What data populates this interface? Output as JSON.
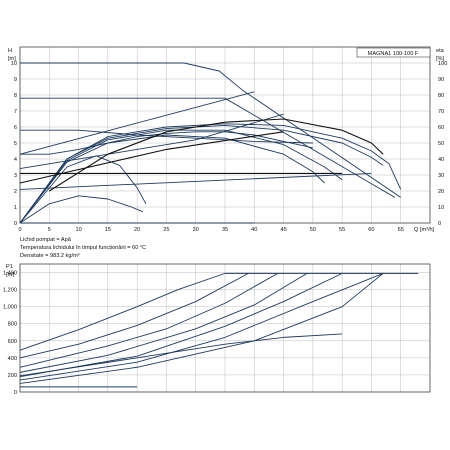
{
  "chart_data": [
    {
      "type": "line",
      "title": "MAGNA1 100-100 F",
      "left_axis": {
        "unit_symbol": "H",
        "unit": "[m]",
        "range": [
          0,
          11
        ],
        "ticks": [
          0,
          1,
          2,
          3,
          4,
          5,
          6,
          7,
          8,
          9,
          10
        ]
      },
      "right_axis": {
        "unit_symbol": "eta",
        "unit": "[%]",
        "range": [
          0,
          110
        ],
        "ticks": [
          0,
          10,
          20,
          30,
          40,
          50,
          60,
          70,
          80,
          90,
          100
        ]
      },
      "x_axis": {
        "label": "Q [m³/h]",
        "range": [
          0,
          70
        ],
        "ticks": [
          0,
          5,
          10,
          15,
          20,
          25,
          30,
          35,
          40,
          45,
          50,
          55,
          60,
          65
        ]
      },
      "grid": true,
      "head_series": [
        {
          "x": [
            0,
            28,
            34,
            38,
            65
          ],
          "y": [
            10,
            10,
            9.5,
            8.3,
            1.6
          ]
        },
        {
          "x": [
            0,
            35,
            64
          ],
          "y": [
            7.8,
            7.8,
            1.6
          ]
        },
        {
          "x": [
            0,
            8,
            15,
            25,
            35,
            45,
            55,
            60,
            63,
            65
          ],
          "y": [
            0,
            4,
            5.4,
            6,
            6.2,
            6.1,
            5.3,
            4.5,
            3.7,
            2.1
          ]
        },
        {
          "x": [
            0,
            8,
            15,
            25,
            35,
            45,
            55,
            60,
            62
          ],
          "y": [
            0,
            4,
            5.3,
            5.9,
            6.1,
            5.8,
            5,
            4.1,
            3.6
          ]
        },
        {
          "x": [
            0,
            8,
            15,
            25,
            35,
            45,
            52,
            55
          ],
          "y": [
            0,
            3.9,
            5.2,
            5.8,
            5.8,
            4.9,
            3.5,
            2.7
          ]
        },
        {
          "x": [
            0,
            8,
            15,
            25,
            35,
            45,
            50,
            52
          ],
          "y": [
            0,
            3.8,
            5,
            5.5,
            5.3,
            4.3,
            3.2,
            2.5
          ]
        },
        {
          "x": [
            0,
            8,
            13,
            17,
            20,
            21.5
          ],
          "y": [
            0,
            3.5,
            4.2,
            3.6,
            2.2,
            1.2
          ]
        },
        {
          "x": [
            0,
            5,
            10,
            15,
            19,
            21
          ],
          "y": [
            0,
            1.2,
            1.7,
            1.5,
            1,
            0.7
          ]
        },
        {
          "x": [
            0,
            10,
            20,
            30,
            40
          ],
          "y": [
            0,
            0,
            0,
            0,
            0
          ]
        },
        {
          "x": [
            0,
            5,
            10,
            15,
            20,
            25,
            30,
            35,
            40,
            45,
            50
          ],
          "y": [
            4.3,
            4.3,
            4.6,
            5,
            5.4,
            5.6,
            5.7,
            5.7,
            5.5,
            5.1,
            4.7
          ]
        },
        {
          "x": [
            0,
            10,
            20,
            30,
            40,
            50
          ],
          "y": [
            5.8,
            5.8,
            5.5,
            5.3,
            5.1,
            5
          ]
        },
        {
          "x": [
            0,
            30,
            45
          ],
          "y": [
            3.4,
            5.2,
            6.8
          ]
        },
        {
          "x": [
            0,
            60
          ],
          "y": [
            2.1,
            3.1
          ]
        },
        {
          "x": [
            0,
            40
          ],
          "y": [
            4.3,
            8.2
          ]
        }
      ],
      "efficiency_series": [
        {
          "x": [
            5,
            15,
            25,
            35,
            45,
            55,
            60,
            62
          ],
          "y": [
            20,
            43,
            57,
            63,
            65,
            58,
            50,
            43
          ]
        },
        {
          "x": [
            0,
            55
          ],
          "y": [
            31,
            31
          ]
        },
        {
          "x": [
            0,
            25,
            45
          ],
          "y": [
            25,
            46,
            57
          ]
        }
      ]
    },
    {
      "type": "line",
      "left_axis": {
        "unit_symbol": "P1",
        "unit": "[W]",
        "range": [
          0,
          1500
        ],
        "ticks": [
          "0",
          "200",
          "400",
          "600",
          "800",
          "1,000",
          "1,200",
          "1,400"
        ]
      },
      "x_axis": {
        "range": [
          0,
          70
        ]
      },
      "grid": true,
      "series": [
        {
          "x": [
            0,
            10,
            20,
            27,
            35,
            68
          ],
          "y": [
            490,
            730,
            1000,
            1200,
            1390,
            1390
          ]
        },
        {
          "x": [
            0,
            10,
            20,
            30,
            39
          ],
          "y": [
            400,
            560,
            780,
            1060,
            1390
          ]
        },
        {
          "x": [
            0,
            15,
            25,
            35,
            44
          ],
          "y": [
            290,
            540,
            740,
            1040,
            1390
          ]
        },
        {
          "x": [
            0,
            15,
            30,
            40,
            49
          ],
          "y": [
            230,
            430,
            740,
            1020,
            1390
          ]
        },
        {
          "x": [
            0,
            20,
            35,
            45,
            55
          ],
          "y": [
            180,
            420,
            770,
            1060,
            1390
          ]
        },
        {
          "x": [
            0,
            20,
            35,
            50,
            62
          ],
          "y": [
            140,
            350,
            640,
            1060,
            1390
          ]
        },
        {
          "x": [
            0,
            20,
            40,
            55,
            62
          ],
          "y": [
            100,
            290,
            600,
            1000,
            1390
          ]
        },
        {
          "x": [
            0,
            20,
            35,
            45,
            55
          ],
          "y": [
            190,
            400,
            560,
            640,
            680
          ]
        },
        {
          "x": [
            0,
            10,
            20
          ],
          "y": [
            60,
            60,
            60
          ]
        }
      ]
    }
  ],
  "info": {
    "line1": "Lichid pompat = Apă",
    "line2": "Temperatura lichidului în timpul funcționării = 60 °C",
    "line3": "Densitate = 983.2 kg/m³"
  },
  "colors": {
    "curve": "#1f3a60",
    "curve_black": "#111111",
    "grid": "#bdbdbd",
    "frame": "#444444"
  }
}
